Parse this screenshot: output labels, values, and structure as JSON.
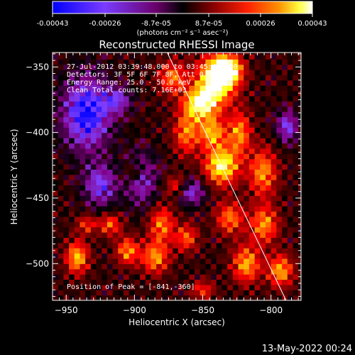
{
  "colorbar": {
    "ticks": [
      "-0.00043",
      "-0.00026",
      "-8.7e-05",
      "8.7e-05",
      "0.00026",
      "0.00043"
    ],
    "units": "(photons cm⁻² s⁻¹ asec⁻²)"
  },
  "chart_data": {
    "type": "heatmap",
    "title": "Reconstructed RHESSI Image",
    "xlabel": "Heliocentric X (arcsec)",
    "ylabel": "Heliocentric Y (arcsec)",
    "xlim": [
      -960,
      -778
    ],
    "ylim": [
      -528,
      -339
    ],
    "xticks": [
      -950,
      -900,
      -850,
      -800
    ],
    "yticks": [
      -350,
      -400,
      -450,
      -500
    ],
    "color_range": [
      -0.00043,
      0.00043
    ],
    "colormap": [
      "#0000ff",
      "#8040ff",
      "#800080",
      "#000000",
      "#800000",
      "#ff0000",
      "#ff8000",
      "#ffff00",
      "#ffffff"
    ],
    "annotations": [
      "27-Jul-2012 03:39:48.000 to 03:45:48.000",
      "Detectors: 3F 5F 6F 7F 8F, Att 0",
      "Energy Range: 25.0 - 50.0 keV",
      "Clean    Total counts: 7.16E+03"
    ],
    "peak_label": "Position of Peak = [-841,-360]",
    "peak": [
      -841,
      -360
    ],
    "limb_line": [
      [
        -876,
        -339
      ],
      [
        -789,
        -528
      ]
    ]
  },
  "footer": {
    "timestamp": "13-May-2022 00:24"
  }
}
